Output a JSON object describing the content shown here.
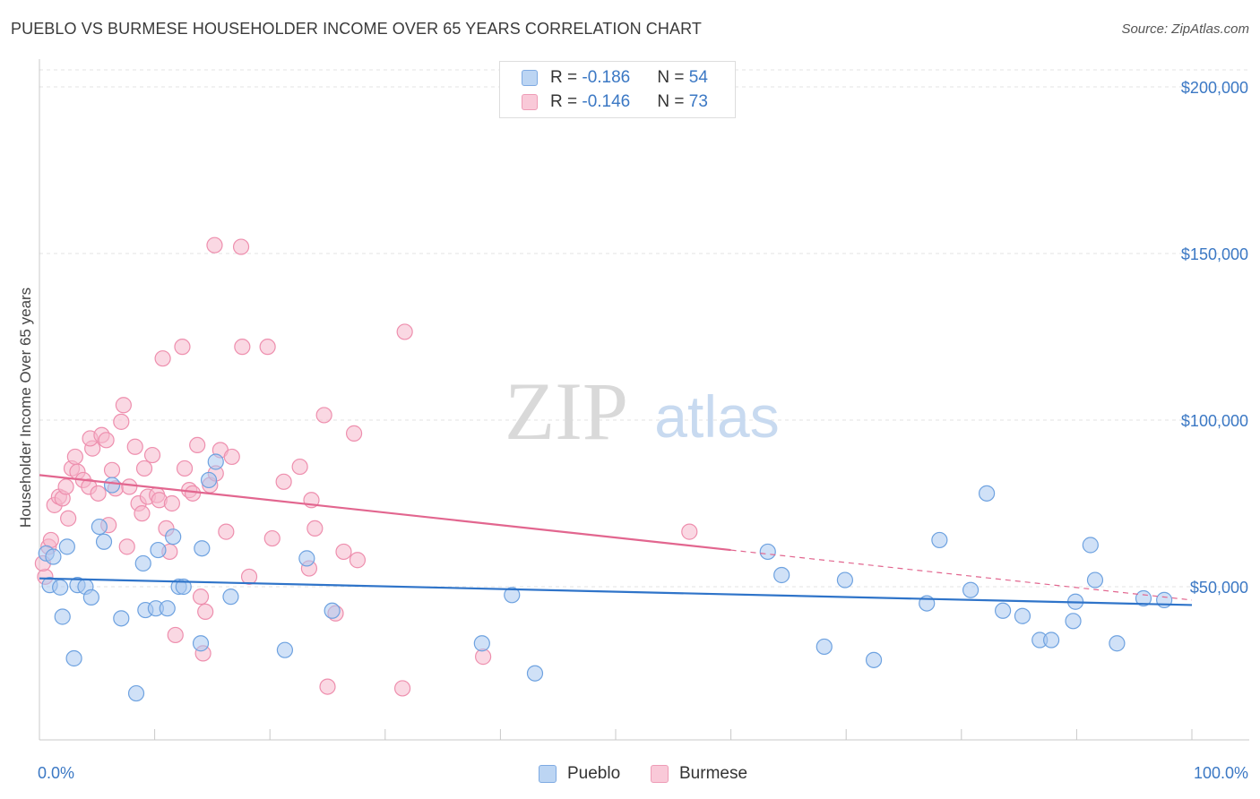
{
  "title": "PUEBLO VS BURMESE HOUSEHOLDER INCOME OVER 65 YEARS CORRELATION CHART",
  "source": "Source: ZipAtlas.com",
  "watermark": {
    "zip": "ZIP",
    "atlas": "atlas"
  },
  "legend": {
    "pueblo": {
      "r_label": "R = ",
      "r_value": "-0.186",
      "n_label": "N = ",
      "n_value": "54"
    },
    "burmese": {
      "r_label": "R = ",
      "r_value": "-0.146",
      "n_label": "N = ",
      "n_value": "73"
    }
  },
  "bottom_legend": {
    "pueblo": "Pueblo",
    "burmese": "Burmese"
  },
  "colors": {
    "pueblo_fill": "#a9c9f0",
    "pueblo_stroke": "#6ea2e0",
    "pueblo_line": "#2f74c9",
    "burmese_fill": "#f6b8cc",
    "burmese_stroke": "#ee8fae",
    "burmese_line": "#e2668f",
    "tick_label": "#3b78c4",
    "grid": "#e3e3e3"
  },
  "chart_data": {
    "type": "scatter",
    "title": "PUEBLO VS BURMESE HOUSEHOLDER INCOME OVER 65 YEARS CORRELATION CHART",
    "xlabel": "",
    "ylabel": "Householder Income Over 65 years",
    "xlim": [
      0,
      100
    ],
    "ylim": [
      8000,
      210000
    ],
    "x_tick_labels": [
      "0.0%",
      "100.0%"
    ],
    "y_ticks": [
      50000,
      100000,
      150000,
      200000
    ],
    "y_tick_labels": [
      "$50,000",
      "$100,000",
      "$150,000",
      "$200,000"
    ],
    "grid": true,
    "legend_position": "top-center",
    "series": [
      {
        "name": "Pueblo",
        "points": [
          [
            0.6,
            60000
          ],
          [
            0.9,
            50500
          ],
          [
            1.8,
            49800
          ],
          [
            2.0,
            41000
          ],
          [
            2.4,
            62000
          ],
          [
            3.0,
            28500
          ],
          [
            3.3,
            50500
          ],
          [
            4.0,
            50000
          ],
          [
            4.5,
            46800
          ],
          [
            5.2,
            68000
          ],
          [
            5.6,
            63500
          ],
          [
            6.3,
            80500
          ],
          [
            7.1,
            40500
          ],
          [
            8.4,
            18000
          ],
          [
            9.0,
            57000
          ],
          [
            9.2,
            43000
          ],
          [
            10.1,
            43500
          ],
          [
            10.3,
            61000
          ],
          [
            11.1,
            43500
          ],
          [
            11.6,
            65000
          ],
          [
            12.1,
            50000
          ],
          [
            12.5,
            50000
          ],
          [
            14.0,
            33000
          ],
          [
            14.1,
            61500
          ],
          [
            14.7,
            82000
          ],
          [
            15.3,
            87500
          ],
          [
            16.6,
            47000
          ],
          [
            21.3,
            31000
          ],
          [
            23.2,
            58500
          ],
          [
            25.4,
            42800
          ],
          [
            38.4,
            33000
          ],
          [
            41.0,
            47500
          ],
          [
            43.0,
            24000
          ],
          [
            63.2,
            60500
          ],
          [
            64.4,
            53500
          ],
          [
            68.1,
            32000
          ],
          [
            69.9,
            52000
          ],
          [
            72.4,
            28000
          ],
          [
            77.0,
            45000
          ],
          [
            78.1,
            64000
          ],
          [
            80.8,
            49000
          ],
          [
            82.2,
            78000
          ],
          [
            83.6,
            42800
          ],
          [
            85.3,
            41200
          ],
          [
            86.8,
            34000
          ],
          [
            87.8,
            34000
          ],
          [
            89.7,
            39700
          ],
          [
            89.9,
            45500
          ],
          [
            91.2,
            62500
          ],
          [
            91.6,
            52000
          ],
          [
            93.5,
            33000
          ],
          [
            95.8,
            46500
          ],
          [
            97.6,
            46000
          ],
          [
            1.2,
            59000
          ]
        ]
      },
      {
        "name": "Burmese",
        "points": [
          [
            0.5,
            53000
          ],
          [
            0.8,
            62000
          ],
          [
            1.0,
            64000
          ],
          [
            1.3,
            74500
          ],
          [
            1.7,
            77000
          ],
          [
            2.0,
            76500
          ],
          [
            2.5,
            70500
          ],
          [
            2.8,
            85500
          ],
          [
            3.3,
            84500
          ],
          [
            3.8,
            82000
          ],
          [
            4.3,
            80000
          ],
          [
            4.6,
            91500
          ],
          [
            4.4,
            94500
          ],
          [
            5.1,
            78000
          ],
          [
            5.4,
            95500
          ],
          [
            5.8,
            94000
          ],
          [
            6.3,
            85000
          ],
          [
            6.6,
            79500
          ],
          [
            7.1,
            99500
          ],
          [
            7.3,
            104500
          ],
          [
            7.6,
            62000
          ],
          [
            7.8,
            80000
          ],
          [
            8.3,
            92000
          ],
          [
            8.6,
            75000
          ],
          [
            8.9,
            72000
          ],
          [
            9.1,
            85500
          ],
          [
            9.4,
            77000
          ],
          [
            9.8,
            89500
          ],
          [
            10.2,
            77500
          ],
          [
            10.4,
            76000
          ],
          [
            10.7,
            118500
          ],
          [
            11.0,
            67500
          ],
          [
            11.3,
            60500
          ],
          [
            11.5,
            75000
          ],
          [
            11.8,
            35500
          ],
          [
            12.4,
            122000
          ],
          [
            12.6,
            85500
          ],
          [
            13.0,
            79000
          ],
          [
            13.3,
            78000
          ],
          [
            13.7,
            92500
          ],
          [
            14.0,
            47000
          ],
          [
            14.2,
            30000
          ],
          [
            14.4,
            42500
          ],
          [
            14.8,
            80500
          ],
          [
            15.3,
            84000
          ],
          [
            15.7,
            91000
          ],
          [
            16.2,
            66500
          ],
          [
            16.7,
            89000
          ],
          [
            15.2,
            152500
          ],
          [
            17.5,
            152000
          ],
          [
            17.6,
            122000
          ],
          [
            19.8,
            122000
          ],
          [
            20.2,
            64500
          ],
          [
            21.2,
            81500
          ],
          [
            22.6,
            86000
          ],
          [
            23.4,
            55500
          ],
          [
            23.6,
            76000
          ],
          [
            23.9,
            67500
          ],
          [
            24.7,
            101500
          ],
          [
            25.0,
            20000
          ],
          [
            25.7,
            42000
          ],
          [
            26.4,
            60500
          ],
          [
            27.3,
            96000
          ],
          [
            27.6,
            58000
          ],
          [
            31.5,
            19500
          ],
          [
            31.7,
            126500
          ],
          [
            38.5,
            29000
          ],
          [
            56.4,
            66500
          ],
          [
            18.2,
            53000
          ],
          [
            6.0,
            68500
          ],
          [
            3.1,
            89000
          ],
          [
            2.3,
            80000
          ],
          [
            0.3,
            57000
          ]
        ]
      }
    ],
    "trend_lines": [
      {
        "name": "Pueblo",
        "x": [
          0,
          100
        ],
        "y": [
          52500,
          44500
        ]
      },
      {
        "name": "Burmese",
        "x": [
          0,
          60
        ],
        "y": [
          83500,
          61000
        ],
        "dashed_extension_x": [
          60,
          100
        ],
        "dashed_extension_y": [
          61000,
          46000
        ]
      }
    ]
  }
}
